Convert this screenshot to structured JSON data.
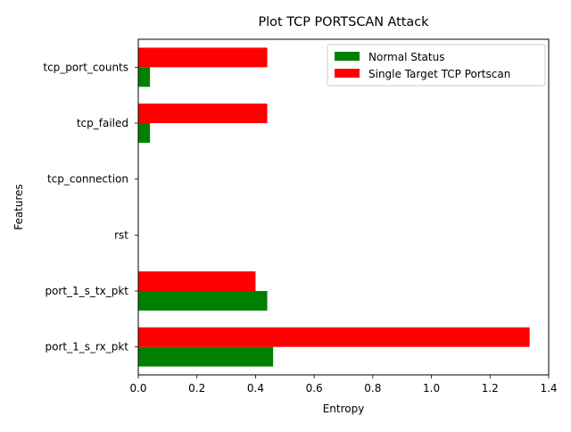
{
  "chart_data": {
    "type": "bar",
    "orientation": "horizontal",
    "title": "Plot TCP PORTSCAN Attack",
    "xlabel": "Entropy",
    "ylabel": "Features",
    "categories": [
      "port_1_s_rx_pkt",
      "port_1_s_tx_pkt",
      "rst",
      "tcp_connection",
      "tcp_failed",
      "tcp_port_counts"
    ],
    "series": [
      {
        "name": "Normal Status",
        "color": "#008000",
        "values": [
          0.46,
          0.44,
          0.0,
          0.0,
          0.04,
          0.04
        ]
      },
      {
        "name": "Single Target TCP Portscan",
        "color": "#ff0000",
        "values": [
          1.335,
          0.4,
          0.0,
          0.0,
          0.44,
          0.44
        ]
      }
    ],
    "xlim": [
      0,
      1.4
    ],
    "xticks": [
      0.0,
      0.2,
      0.4,
      0.6,
      0.8,
      1.0,
      1.2,
      1.4
    ],
    "xtick_labels": [
      "0.0",
      "0.2",
      "0.4",
      "0.6",
      "0.8",
      "1.0",
      "1.2",
      "1.4"
    ],
    "legend": "top-right",
    "grid": false
  }
}
